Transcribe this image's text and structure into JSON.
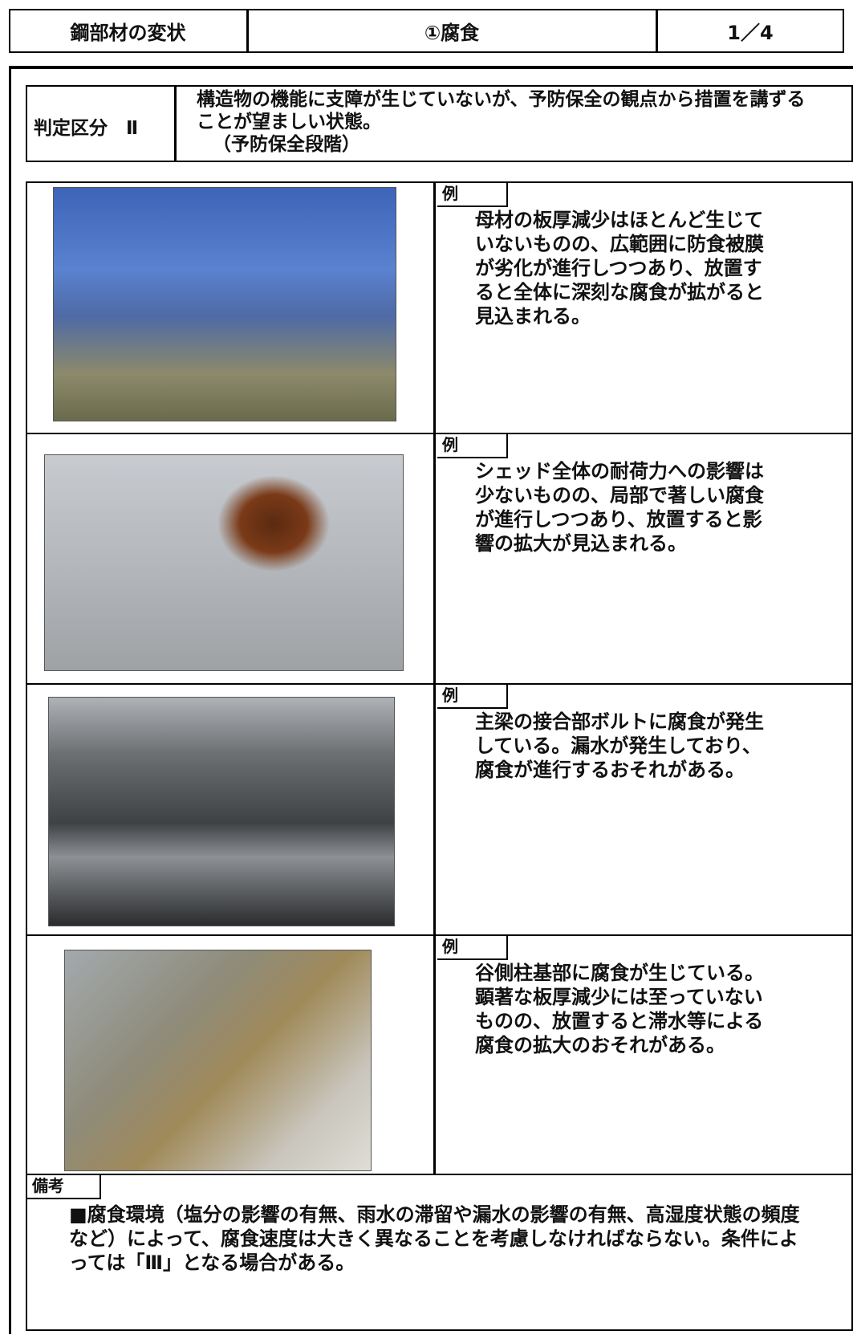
{
  "header": {
    "category": "鋼部材の変状",
    "item": "①腐食",
    "page": "1／4"
  },
  "judgment": {
    "label": "判定区分　Ⅱ",
    "description": "構造物の機能に支障が生じていないが、予防保全の観点から措置を講ずることが望ましい状態。",
    "stage": "（予防保全段階）"
  },
  "examples": [
    {
      "tag": "例",
      "text": "母材の板厚減少はほとんど生じていないものの、広範囲に防食被膜が劣化が進行しつつあり、放置すると全体に深刻な腐食が拡がると見込まれる。"
    },
    {
      "tag": "例",
      "text": "シェッド全体の耐荷力への影響は少ないものの、局部で著しい腐食が進行しつつあり、放置すると影響の拡大が見込まれる。"
    },
    {
      "tag": "例",
      "text": "主梁の接合部ボルトに腐食が発生している。漏水が発生しており、腐食が進行するおそれがある。"
    },
    {
      "tag": "例",
      "text": "谷側柱基部に腐食が生じている。顕著な板厚減少には至っていないものの、放置すると滞水等による腐食の拡大のおそれがある。"
    }
  ],
  "remarks": {
    "tag": "備考",
    "text": "■腐食環境（塩分の影響の有無、雨水の滞留や漏水の影響の有無、高湿度状態の頻度など）によって、腐食速度は大きく異なることを考慮しなければならない。条件によっては「Ⅲ」となる場合がある。"
  }
}
